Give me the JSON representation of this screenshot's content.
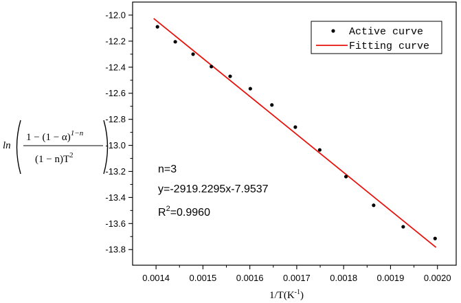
{
  "chart_data": {
    "type": "scatter",
    "xlabel": "1/T(K",
    "xlabel_sup": "-1",
    "xlabel_tail": ")",
    "ylabel": {
      "prefix": "ln",
      "numerator": "1 − (1 − α)",
      "numerator_sup": "1−n",
      "denominator": "(1 − n)T",
      "denominator_sup": "2"
    },
    "xlim": [
      0.00135,
      0.00204
    ],
    "ylim": [
      -13.92,
      -11.9
    ],
    "x_ticks": [
      "0.0014",
      "0.0015",
      "0.0016",
      "0.0017",
      "0.0018",
      "0.0019",
      "0.0020"
    ],
    "y_ticks": [
      "-12.0",
      "-12.2",
      "-12.4",
      "-12.6",
      "-12.8",
      "-13.0",
      "-13.2",
      "-13.4",
      "-13.6",
      "-13.8"
    ],
    "series": [
      {
        "name": "Active curve",
        "marker": "dot",
        "color": "#000000",
        "x": [
          0.001403,
          0.001441,
          0.001479,
          0.001518,
          0.001558,
          0.001601,
          0.001647,
          0.001697,
          0.001749,
          0.001805,
          0.001864,
          0.001927,
          0.001995
        ],
        "y": [
          -12.09,
          -12.205,
          -12.3,
          -12.395,
          -12.47,
          -12.565,
          -12.69,
          -12.86,
          -13.035,
          -13.24,
          -13.46,
          -13.625,
          -13.715
        ]
      },
      {
        "name": "Fitting curve",
        "line": true,
        "color": "#e8120c",
        "x": [
          0.001395,
          0.001997
        ],
        "y": [
          -12.026,
          -13.783
        ]
      }
    ],
    "annotations": {
      "n": "n=3",
      "equation": "y=-2919.2295x-7.9537",
      "r2_prefix": "R",
      "r2_sup": "2",
      "r2_value": "=0.9960"
    },
    "legend_position": "top-right",
    "grid": false
  }
}
